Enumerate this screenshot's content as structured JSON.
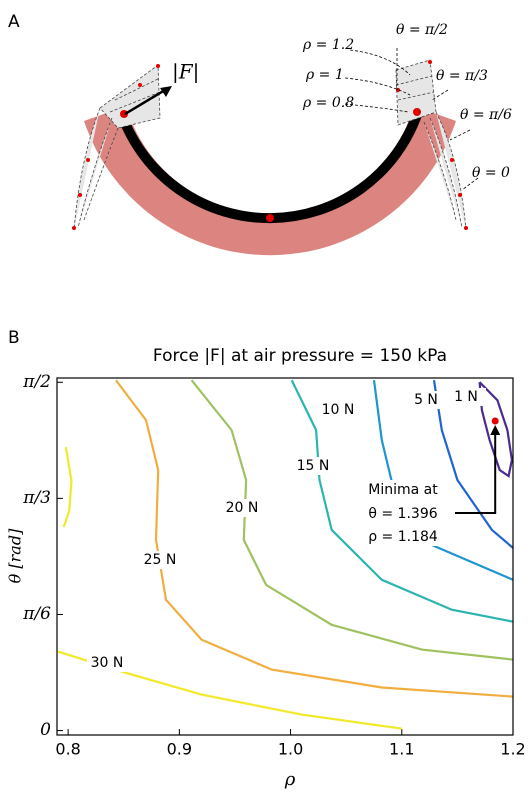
{
  "panel_a": {
    "label": "A",
    "force_label": "|F|",
    "rho_labels": [
      "ρ = 1.2",
      "ρ = 1",
      "ρ = 0.8"
    ],
    "theta_labels": [
      "θ = π/2",
      "θ = π/3",
      "θ = π/6",
      "θ = 0"
    ]
  },
  "chart_data": {
    "type": "contour",
    "panel_label": "B",
    "title": "Force |F| at air pressure = 150 kPa",
    "x_label": "ρ",
    "y_label": "θ [rad]",
    "xlim": [
      0.79,
      1.2
    ],
    "ylim": [
      -0.02,
      1.59
    ],
    "xticks": [
      0.8,
      0.9,
      {
        "value": 1,
        "label": "1.0"
      },
      1.1,
      1.2
    ],
    "yticks": [
      0,
      {
        "value": 0.5236,
        "label": "π/6"
      },
      {
        "value": 1.0472,
        "label": "π/3"
      },
      {
        "value": 1.5708,
        "label": "π/2"
      }
    ],
    "series": [
      {
        "name": "30 N",
        "color": "#f2e92a",
        "x": [
          0.798,
          0.803,
          0.801,
          0.796,
          null,
          0.791,
          0.848,
          0.92,
          1.01,
          1.1
        ],
        "values": [
          1.278,
          1.125,
          0.99,
          0.918,
          null,
          0.356,
          0.266,
          0.162,
          0.072,
          0.009
        ]
      },
      {
        "name": "25 N",
        "color": "#f0ae40",
        "x": [
          0.843,
          0.87,
          0.881,
          0.879,
          0.888,
          0.92,
          0.983,
          1.082,
          1.2
        ],
        "values": [
          1.58,
          1.4,
          1.175,
          0.86,
          0.59,
          0.41,
          0.275,
          0.194,
          0.153
        ]
      },
      {
        "name": "20 N",
        "color": "#9fc160",
        "x": [
          0.911,
          0.947,
          0.96,
          0.958,
          0.978,
          1.037,
          1.118,
          1.2
        ],
        "values": [
          1.58,
          1.355,
          1.13,
          0.86,
          0.657,
          0.477,
          0.365,
          0.32
        ]
      },
      {
        "name": "15 N",
        "color": "#2cb4b0",
        "x": [
          1.001,
          1.023,
          1.026,
          1.037,
          1.082,
          1.145,
          1.2
        ],
        "values": [
          1.58,
          1.355,
          1.13,
          0.905,
          0.68,
          0.545,
          0.491
        ]
      },
      {
        "name": "10 N",
        "color": "#1e94d0",
        "x": [
          1.075,
          1.082,
          1.095,
          1.127,
          1.2
        ],
        "values": [
          1.58,
          1.31,
          1.04,
          0.837,
          0.68
        ]
      },
      {
        "name": "5 N",
        "color": "#1f64d0",
        "x": [
          1.129,
          1.136,
          1.15,
          1.181,
          1.2
        ],
        "values": [
          1.58,
          1.355,
          1.13,
          0.905,
          0.824
        ]
      },
      {
        "name": "1 N",
        "color": "#4b2a90",
        "x": [
          1.17,
          1.186,
          1.195,
          1.199,
          1.196,
          1.188,
          1.179,
          1.172,
          1.17
        ],
        "values": [
          1.571,
          1.49,
          1.355,
          1.22,
          1.148,
          1.175,
          1.31,
          1.445,
          1.571
        ]
      }
    ],
    "minimum": {
      "label": "Minima at",
      "theta": "θ = 1.396",
      "rho": "ρ = 1.184",
      "x": 1.184,
      "y": 1.396
    }
  }
}
